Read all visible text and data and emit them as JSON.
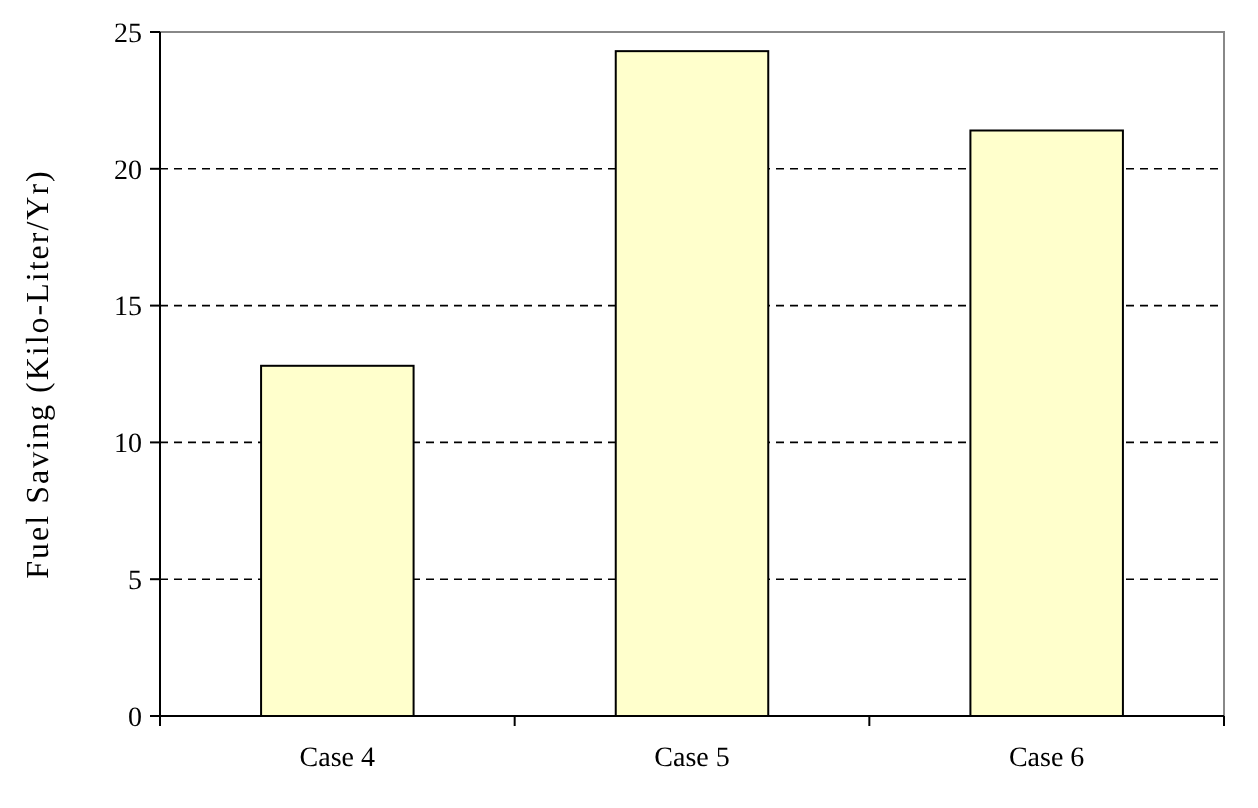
{
  "chart_data": {
    "type": "bar",
    "ylabel": "Fuel Saving (Kilo-Liter/Yr)",
    "categories": [
      "Case 4",
      "Case 5",
      "Case 6"
    ],
    "values": [
      12.8,
      24.3,
      21.4
    ],
    "color": "#ffffcc",
    "ylim": [
      0,
      25
    ],
    "yticks": [
      0,
      5,
      10,
      15,
      20,
      25
    ],
    "grid": "y"
  }
}
